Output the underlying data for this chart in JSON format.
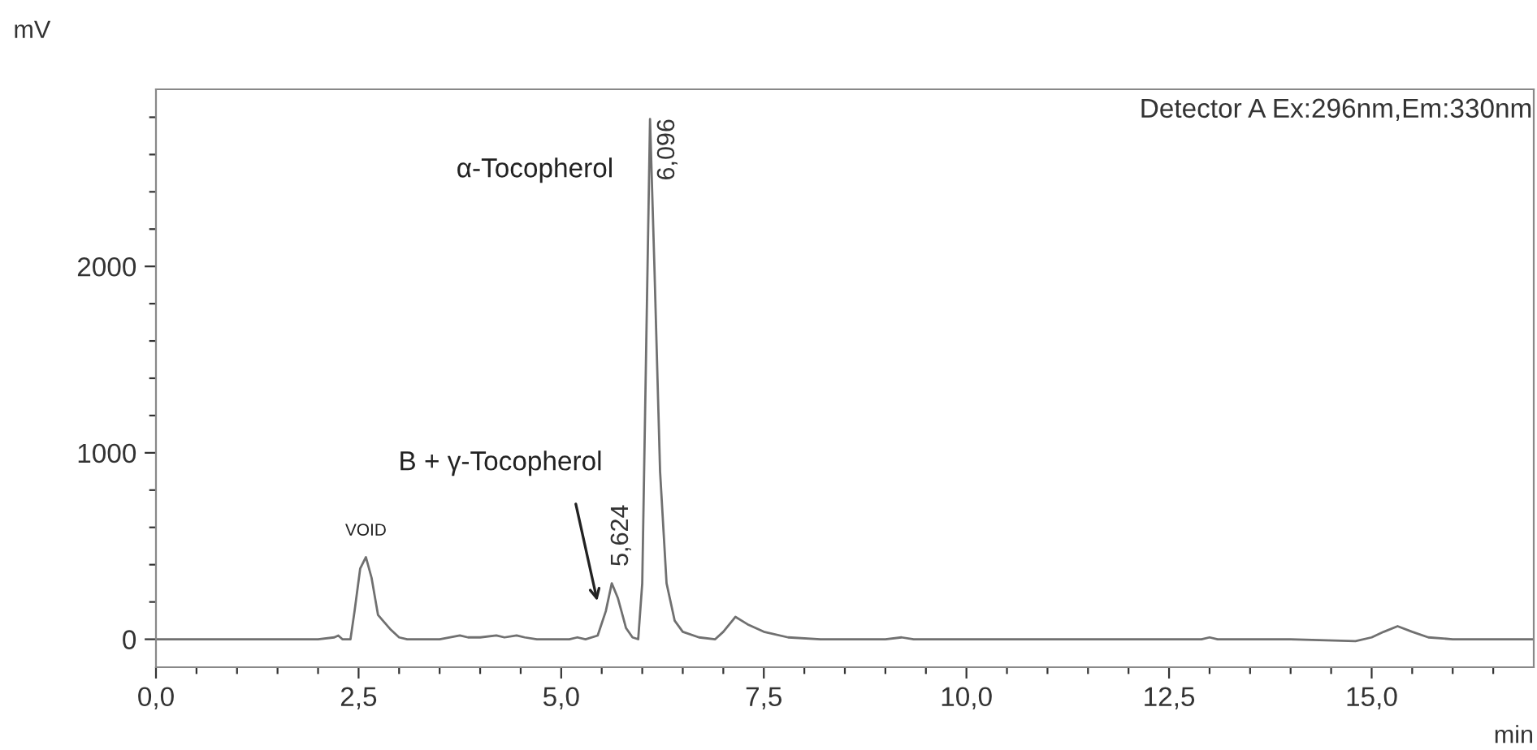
{
  "chart_data": {
    "type": "line",
    "xlabel": "min",
    "ylabel": "mV",
    "series": [
      {
        "color": "#707070",
        "x": [
          0,
          2.0,
          2.2,
          2.25,
          2.3,
          2.4,
          2.45,
          2.52,
          2.59,
          2.66,
          2.74,
          2.8,
          2.9,
          3.0,
          3.1,
          3.5,
          3.75,
          3.85,
          4.0,
          4.2,
          4.3,
          4.45,
          4.55,
          4.7,
          5.1,
          5.2,
          5.3,
          5.45,
          5.55,
          5.624,
          5.7,
          5.8,
          5.88,
          5.95,
          6.0,
          6.05,
          6.096,
          6.15,
          6.22,
          6.3,
          6.4,
          6.5,
          6.7,
          6.9,
          7.0,
          7.15,
          7.3,
          7.5,
          7.8,
          8.2,
          9.0,
          9.2,
          9.35,
          9.5,
          12.9,
          13.0,
          13.1,
          14.0,
          14.8,
          15.0,
          15.15,
          15.32,
          15.5,
          15.7,
          16.0,
          16.5,
          17.0
        ],
        "values": [
          0,
          0,
          10,
          20,
          0,
          0,
          150,
          380,
          440,
          330,
          130,
          100,
          50,
          10,
          0,
          0,
          20,
          10,
          10,
          20,
          10,
          20,
          10,
          0,
          0,
          10,
          0,
          20,
          150,
          300,
          220,
          60,
          10,
          0,
          300,
          1600,
          2790,
          2000,
          900,
          300,
          100,
          40,
          10,
          0,
          40,
          120,
          80,
          40,
          10,
          0,
          0,
          10,
          0,
          0,
          0,
          10,
          0,
          0,
          -10,
          10,
          40,
          70,
          40,
          10,
          0,
          0,
          0
        ]
      }
    ],
    "xlim": [
      0,
      17.0
    ],
    "ylim": [
      -150,
      2950
    ],
    "xticks": [
      {
        "value": 0,
        "label": "0,0"
      },
      {
        "value": 0.5,
        "label": null
      },
      {
        "value": 1.0,
        "label": null
      },
      {
        "value": 1.5,
        "label": null
      },
      {
        "value": 2.0,
        "label": null
      },
      {
        "value": 2.5,
        "label": "2,5"
      },
      {
        "value": 3.0,
        "label": null
      },
      {
        "value": 3.5,
        "label": null
      },
      {
        "value": 4.0,
        "label": null
      },
      {
        "value": 4.5,
        "label": null
      },
      {
        "value": 5.0,
        "label": "5,0"
      },
      {
        "value": 5.5,
        "label": null
      },
      {
        "value": 6.0,
        "label": null
      },
      {
        "value": 6.5,
        "label": null
      },
      {
        "value": 7.0,
        "label": null
      },
      {
        "value": 7.5,
        "label": "7,5"
      },
      {
        "value": 8.0,
        "label": null
      },
      {
        "value": 8.5,
        "label": null
      },
      {
        "value": 9.0,
        "label": null
      },
      {
        "value": 9.5,
        "label": null
      },
      {
        "value": 10.0,
        "label": "10,0"
      },
      {
        "value": 10.5,
        "label": null
      },
      {
        "value": 11.0,
        "label": null
      },
      {
        "value": 11.5,
        "label": null
      },
      {
        "value": 12.0,
        "label": null
      },
      {
        "value": 12.5,
        "label": "12,5"
      },
      {
        "value": 13.0,
        "label": null
      },
      {
        "value": 13.5,
        "label": null
      },
      {
        "value": 14.0,
        "label": null
      },
      {
        "value": 14.5,
        "label": null
      },
      {
        "value": 15.0,
        "label": "15,0"
      },
      {
        "value": 15.5,
        "label": null
      },
      {
        "value": 16.0,
        "label": null
      },
      {
        "value": 16.5,
        "label": null
      }
    ],
    "yticks": [
      0,
      {
        "value": 200,
        "label": null
      },
      {
        "value": 400,
        "label": null
      },
      {
        "value": 600,
        "label": null
      },
      {
        "value": 800,
        "label": null
      },
      1000,
      {
        "value": 1200,
        "label": null
      },
      {
        "value": 1400,
        "label": null
      },
      {
        "value": 1600,
        "label": null
      },
      {
        "value": 1800,
        "label": null
      },
      2000,
      {
        "value": 2200,
        "label": null
      },
      {
        "value": 2400,
        "label": null
      },
      {
        "value": 2600,
        "label": null
      },
      {
        "value": 2800,
        "label": null
      }
    ],
    "grid": false,
    "legend": false,
    "marker": "none",
    "line_style": "solid",
    "annotations": [
      {
        "text": "VOID",
        "x": 2.59,
        "y": 440
      },
      {
        "text": "5,624",
        "x": 5.624,
        "y": 300
      },
      {
        "text": "6,096",
        "x": 6.096,
        "y": 2790
      },
      "B + γ-Tocopherol",
      "α-Tocopherol",
      "Detector A Ex:296nm,Em:330nm"
    ]
  }
}
